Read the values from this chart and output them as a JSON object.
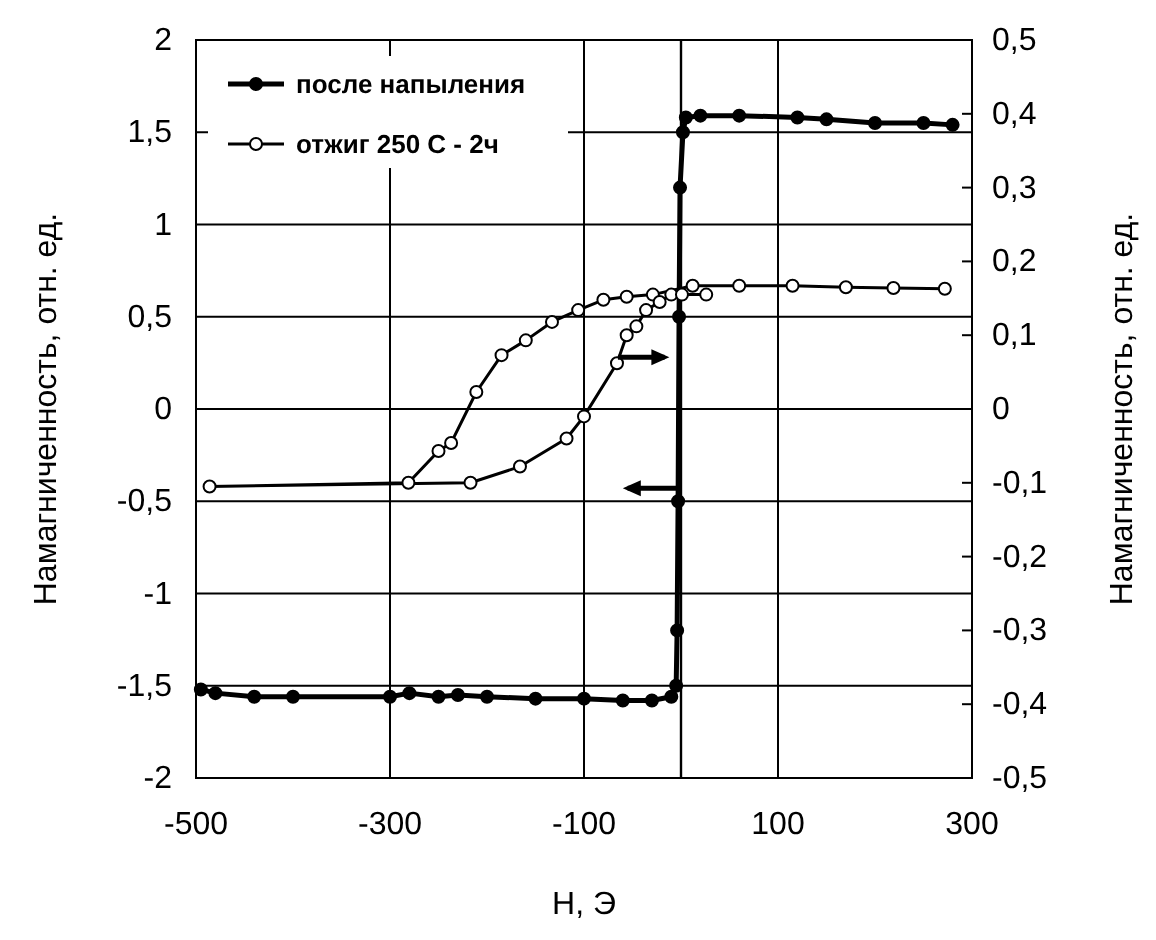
{
  "chart_data": {
    "type": "line",
    "xlabel": "Н, Э",
    "ylabel": "Намагниченность, отн. ед.",
    "y2label": "Намагниченность, отн. ед.",
    "xlim": [
      -500,
      300
    ],
    "xticks": [
      -500,
      -300,
      -100,
      100,
      300
    ],
    "ylim": [
      -2,
      2
    ],
    "yticks": [
      {
        "value": -2,
        "label": "-2"
      },
      {
        "value": -1.5,
        "label": "-1,5"
      },
      {
        "value": -1,
        "label": "-1"
      },
      {
        "value": -0.5,
        "label": "-0,5"
      },
      {
        "value": 0,
        "label": "0"
      },
      {
        "value": 0.5,
        "label": "0,5"
      },
      {
        "value": 1,
        "label": "1"
      },
      {
        "value": 1.5,
        "label": "1,5"
      },
      {
        "value": 2,
        "label": "2"
      }
    ],
    "y2lim": [
      -0.5,
      0.5
    ],
    "y2ticks": [
      {
        "value": -0.5,
        "label": "-0,5"
      },
      {
        "value": -0.4,
        "label": "-0,4"
      },
      {
        "value": -0.3,
        "label": "-0,3"
      },
      {
        "value": -0.2,
        "label": "-0,2"
      },
      {
        "value": -0.1,
        "label": "-0,1"
      },
      {
        "value": 0,
        "label": "0"
      },
      {
        "value": 0.1,
        "label": "0,1"
      },
      {
        "value": 0.2,
        "label": "0,2"
      },
      {
        "value": 0.3,
        "label": "0,3"
      },
      {
        "value": 0.4,
        "label": "0,4"
      },
      {
        "value": 0.5,
        "label": "0,5"
      }
    ],
    "grid": true,
    "legend": "top left",
    "marker": "circle",
    "line_style": "solid",
    "ref_lines": [
      {
        "axis": "x",
        "value": 0,
        "color": "#000000"
      }
    ],
    "series": [
      {
        "name": "после напыления",
        "color": "#000000",
        "x": [
          -495,
          -480,
          -440,
          -400,
          -300,
          -280,
          -250,
          -230,
          -200,
          -150,
          -100,
          -60,
          -30,
          -10,
          -5,
          -4,
          -3,
          -2,
          -1,
          2,
          5,
          20,
          60,
          120,
          150,
          200,
          250,
          280
        ],
        "values": [
          -1.52,
          -1.54,
          -1.56,
          -1.56,
          -1.56,
          -1.54,
          -1.56,
          -1.55,
          -1.56,
          -1.57,
          -1.57,
          -1.58,
          -1.58,
          -1.56,
          -1.5,
          -1.2,
          -0.5,
          0.5,
          1.2,
          1.5,
          1.58,
          1.59,
          1.59,
          1.58,
          1.57,
          1.55,
          1.55,
          1.54
        ]
      },
      {
        "name": "отжиг 250 С - 2ч",
        "color": "#000000",
        "axis": "y2",
        "x": [
          272,
          219,
          170,
          115,
          60,
          12,
          -29,
          -56,
          -80,
          -106,
          -133,
          -160,
          -185,
          -211,
          -237,
          -250,
          -281,
          -486,
          -217,
          -166,
          -118,
          -100,
          -66,
          -56,
          -46,
          -36,
          -22,
          -10,
          1,
          26
        ],
        "values": [
          0.163,
          0.164,
          0.165,
          0.167,
          0.167,
          0.167,
          0.155,
          0.152,
          0.148,
          0.134,
          0.118,
          0.093,
          0.073,
          0.023,
          -0.046,
          -0.057,
          -0.1,
          -0.105,
          -0.1,
          -0.078,
          -0.04,
          -0.01,
          0.062,
          0.1,
          0.112,
          0.134,
          0.145,
          0.155,
          0.155,
          0.155
        ]
      }
    ]
  }
}
